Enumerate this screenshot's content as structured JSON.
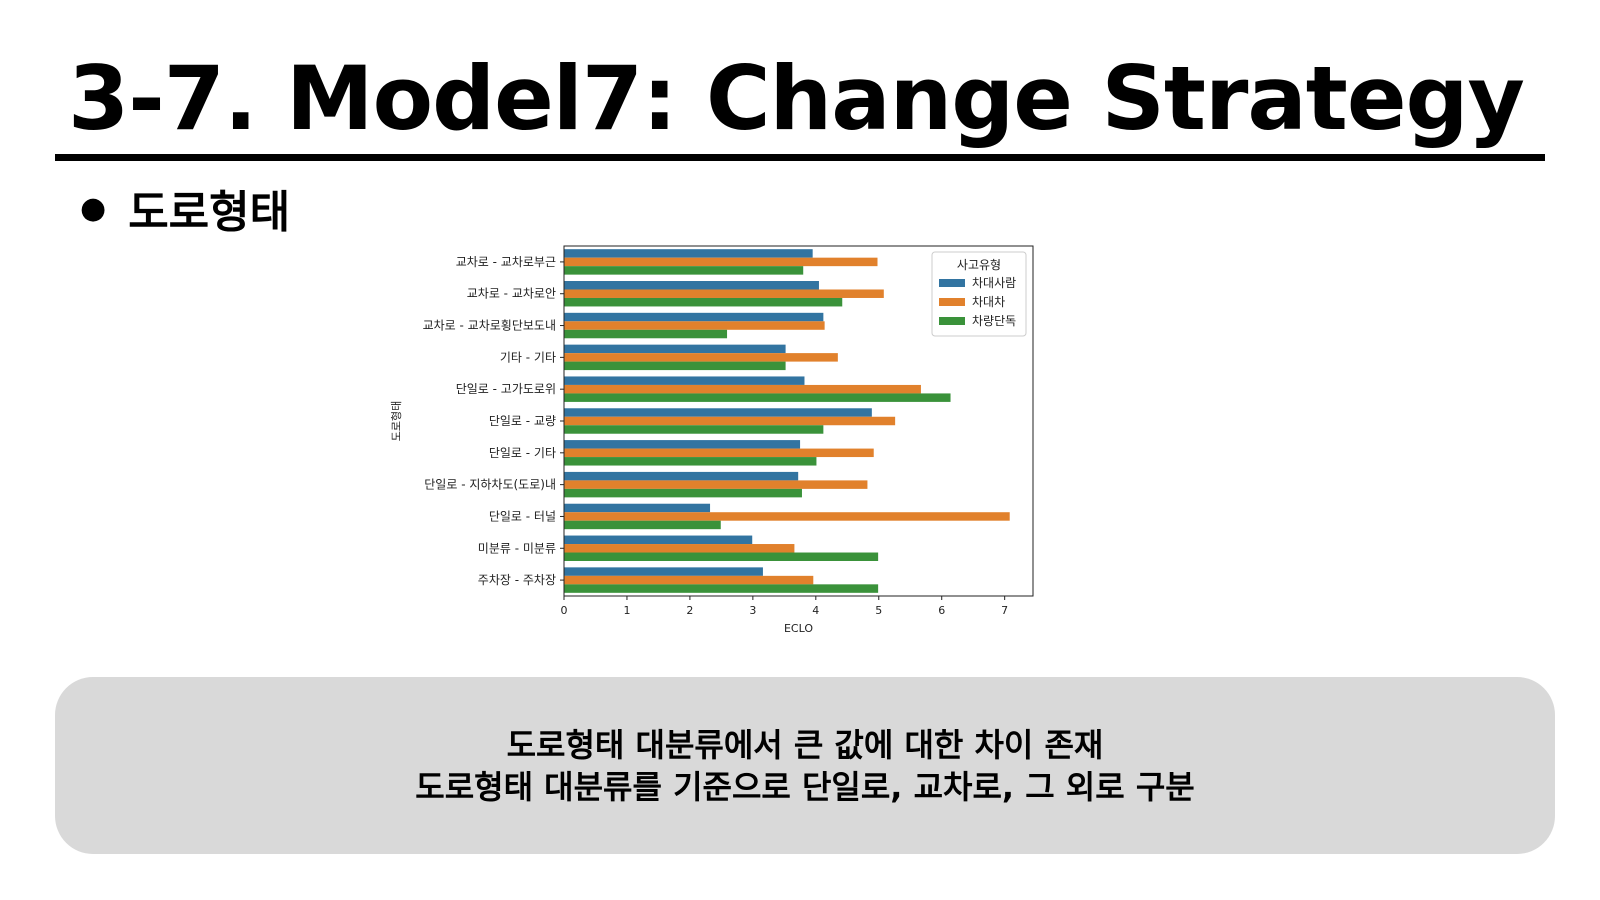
{
  "slide": {
    "title": "3-7. Model7: Change Strategy",
    "bullet": "도로형태",
    "callout_lines": [
      "도로형태 대분류에서 큰 값에 대한 차이 존재",
      "도로형태 대분류를 기준으로 단일로, 교차로, 그 외로 구분"
    ]
  },
  "chart_data": {
    "type": "bar",
    "orientation": "horizontal",
    "title": "",
    "xlabel": "ECLO",
    "ylabel": "도로형태",
    "xlim": [
      0,
      7.45
    ],
    "xticks": [
      0,
      1,
      2,
      3,
      4,
      5,
      6,
      7
    ],
    "grid": false,
    "legend": {
      "title": "사고유형",
      "position": "upper-right"
    },
    "categories": [
      "교차로 - 교차로부근",
      "교차로 - 교차로안",
      "교차로 - 교차로횡단보도내",
      "기타 - 기타",
      "단일로 - 고가도로위",
      "단일로 - 교량",
      "단일로 - 기타",
      "단일로 - 지하차도(도로)내",
      "단일로 - 터널",
      "미분류 - 미분류",
      "주차장 - 주차장"
    ],
    "series": [
      {
        "name": "차대사람",
        "color": "#3274a1",
        "values": [
          3.95,
          4.05,
          4.12,
          3.52,
          3.82,
          4.89,
          3.75,
          3.72,
          2.32,
          2.99,
          3.16
        ]
      },
      {
        "name": "차대차",
        "color": "#e1812c",
        "values": [
          4.98,
          5.08,
          4.14,
          4.35,
          5.67,
          5.26,
          4.92,
          4.82,
          7.08,
          3.66,
          3.96
        ]
      },
      {
        "name": "차량단독",
        "color": "#3a923a",
        "values": [
          3.8,
          4.42,
          2.59,
          3.52,
          6.14,
          4.12,
          4.01,
          3.78,
          2.49,
          4.99,
          4.99
        ]
      }
    ]
  }
}
